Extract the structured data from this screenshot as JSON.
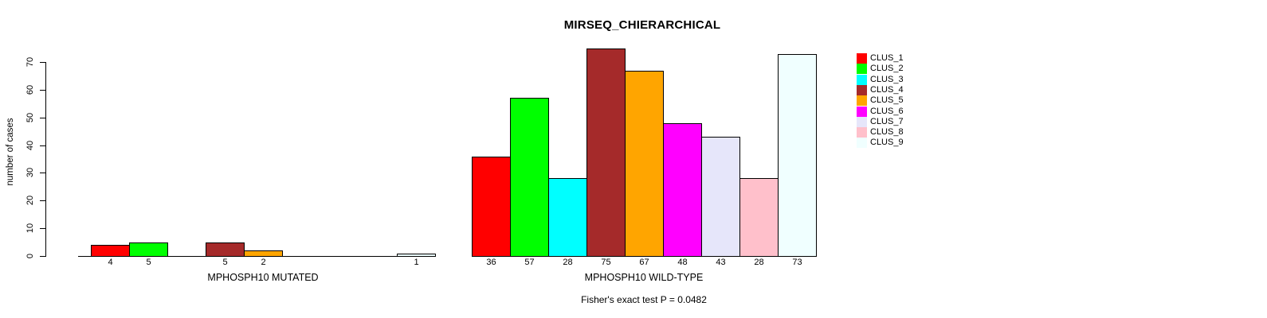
{
  "title": "MIRSEQ_CHIERARCHICAL",
  "annotation": "Fisher's exact test P = 0.0482",
  "y_axis": {
    "label": "number of cases",
    "ticks": [
      0,
      10,
      20,
      30,
      40,
      50,
      60,
      70
    ]
  },
  "legend": {
    "position": "right",
    "items": [
      {
        "label": "CLUS_1",
        "color": "#FF0000"
      },
      {
        "label": "CLUS_2",
        "color": "#00FF00"
      },
      {
        "label": "CLUS_3",
        "color": "#00FFFF"
      },
      {
        "label": "CLUS_4",
        "color": "#A52A2A"
      },
      {
        "label": "CLUS_5",
        "color": "#FFA500"
      },
      {
        "label": "CLUS_6",
        "color": "#FF00FF"
      },
      {
        "label": "CLUS_7",
        "color": "#E6E6FA"
      },
      {
        "label": "CLUS_8",
        "color": "#FFC0CB"
      },
      {
        "label": "CLUS_9",
        "color": "#F0FFFF"
      }
    ]
  },
  "chart_data": {
    "type": "bar",
    "title": "MIRSEQ_CHIERARCHICAL",
    "xlabel": "",
    "ylabel": "number of cases",
    "ylim": [
      0,
      75
    ],
    "yticks": [
      0,
      10,
      20,
      30,
      40,
      50,
      60,
      70
    ],
    "grid": false,
    "legend_position": "right",
    "clusters": [
      "CLUS_1",
      "CLUS_2",
      "CLUS_3",
      "CLUS_4",
      "CLUS_5",
      "CLUS_6",
      "CLUS_7",
      "CLUS_8",
      "CLUS_9"
    ],
    "colors": [
      "#FF0000",
      "#00FF00",
      "#00FFFF",
      "#A52A2A",
      "#FFA500",
      "#FF00FF",
      "#E6E6FA",
      "#FFC0CB",
      "#F0FFFF"
    ],
    "groups": [
      {
        "label": "MPHOSPH10 MUTATED",
        "values": [
          4,
          5,
          0,
          5,
          2,
          0,
          0,
          0,
          1
        ]
      },
      {
        "label": "MPHOSPH10 WILD-TYPE",
        "values": [
          36,
          57,
          28,
          75,
          67,
          48,
          43,
          28,
          73
        ]
      }
    ],
    "value_labels_shown_under_bars": true,
    "zero_values_have_no_bar_or_label": true,
    "annotation": "Fisher's exact test P = 0.0482"
  }
}
